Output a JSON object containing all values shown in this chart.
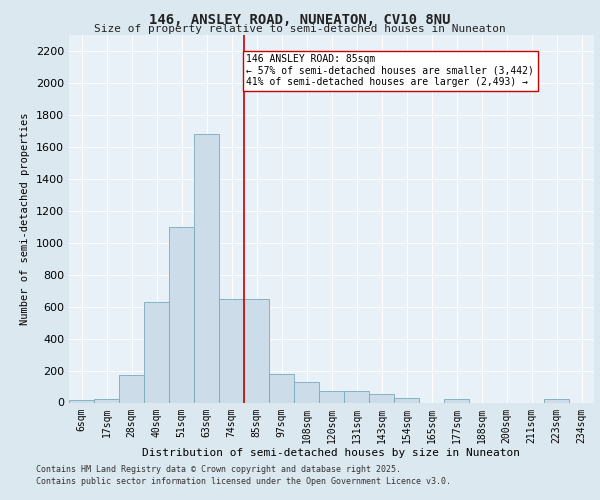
{
  "title_line1": "146, ANSLEY ROAD, NUNEATON, CV10 8NU",
  "title_line2": "Size of property relative to semi-detached houses in Nuneaton",
  "xlabel": "Distribution of semi-detached houses by size in Nuneaton",
  "ylabel": "Number of semi-detached properties",
  "categories": [
    "6sqm",
    "17sqm",
    "28sqm",
    "40sqm",
    "51sqm",
    "63sqm",
    "74sqm",
    "85sqm",
    "97sqm",
    "108sqm",
    "120sqm",
    "131sqm",
    "143sqm",
    "154sqm",
    "165sqm",
    "177sqm",
    "188sqm",
    "200sqm",
    "211sqm",
    "223sqm",
    "234sqm"
  ],
  "values": [
    15,
    20,
    170,
    630,
    1100,
    1680,
    650,
    650,
    180,
    130,
    75,
    70,
    55,
    30,
    0,
    25,
    0,
    0,
    0,
    20,
    0
  ],
  "bar_color": "#ccdce8",
  "bar_edge_color": "#7aaabb",
  "vline_x": 7,
  "vline_color": "#cc0000",
  "annotation_title": "146 ANSLEY ROAD: 85sqm",
  "annotation_line1": "← 57% of semi-detached houses are smaller (3,442)",
  "annotation_line2": "41% of semi-detached houses are larger (2,493) →",
  "ylim": [
    0,
    2300
  ],
  "yticks": [
    0,
    200,
    400,
    600,
    800,
    1000,
    1200,
    1400,
    1600,
    1800,
    2000,
    2200
  ],
  "footer_line1": "Contains HM Land Registry data © Crown copyright and database right 2025.",
  "footer_line2": "Contains public sector information licensed under the Open Government Licence v3.0.",
  "bg_color": "#dce8f0",
  "plot_bg_color": "#e8f0f8"
}
